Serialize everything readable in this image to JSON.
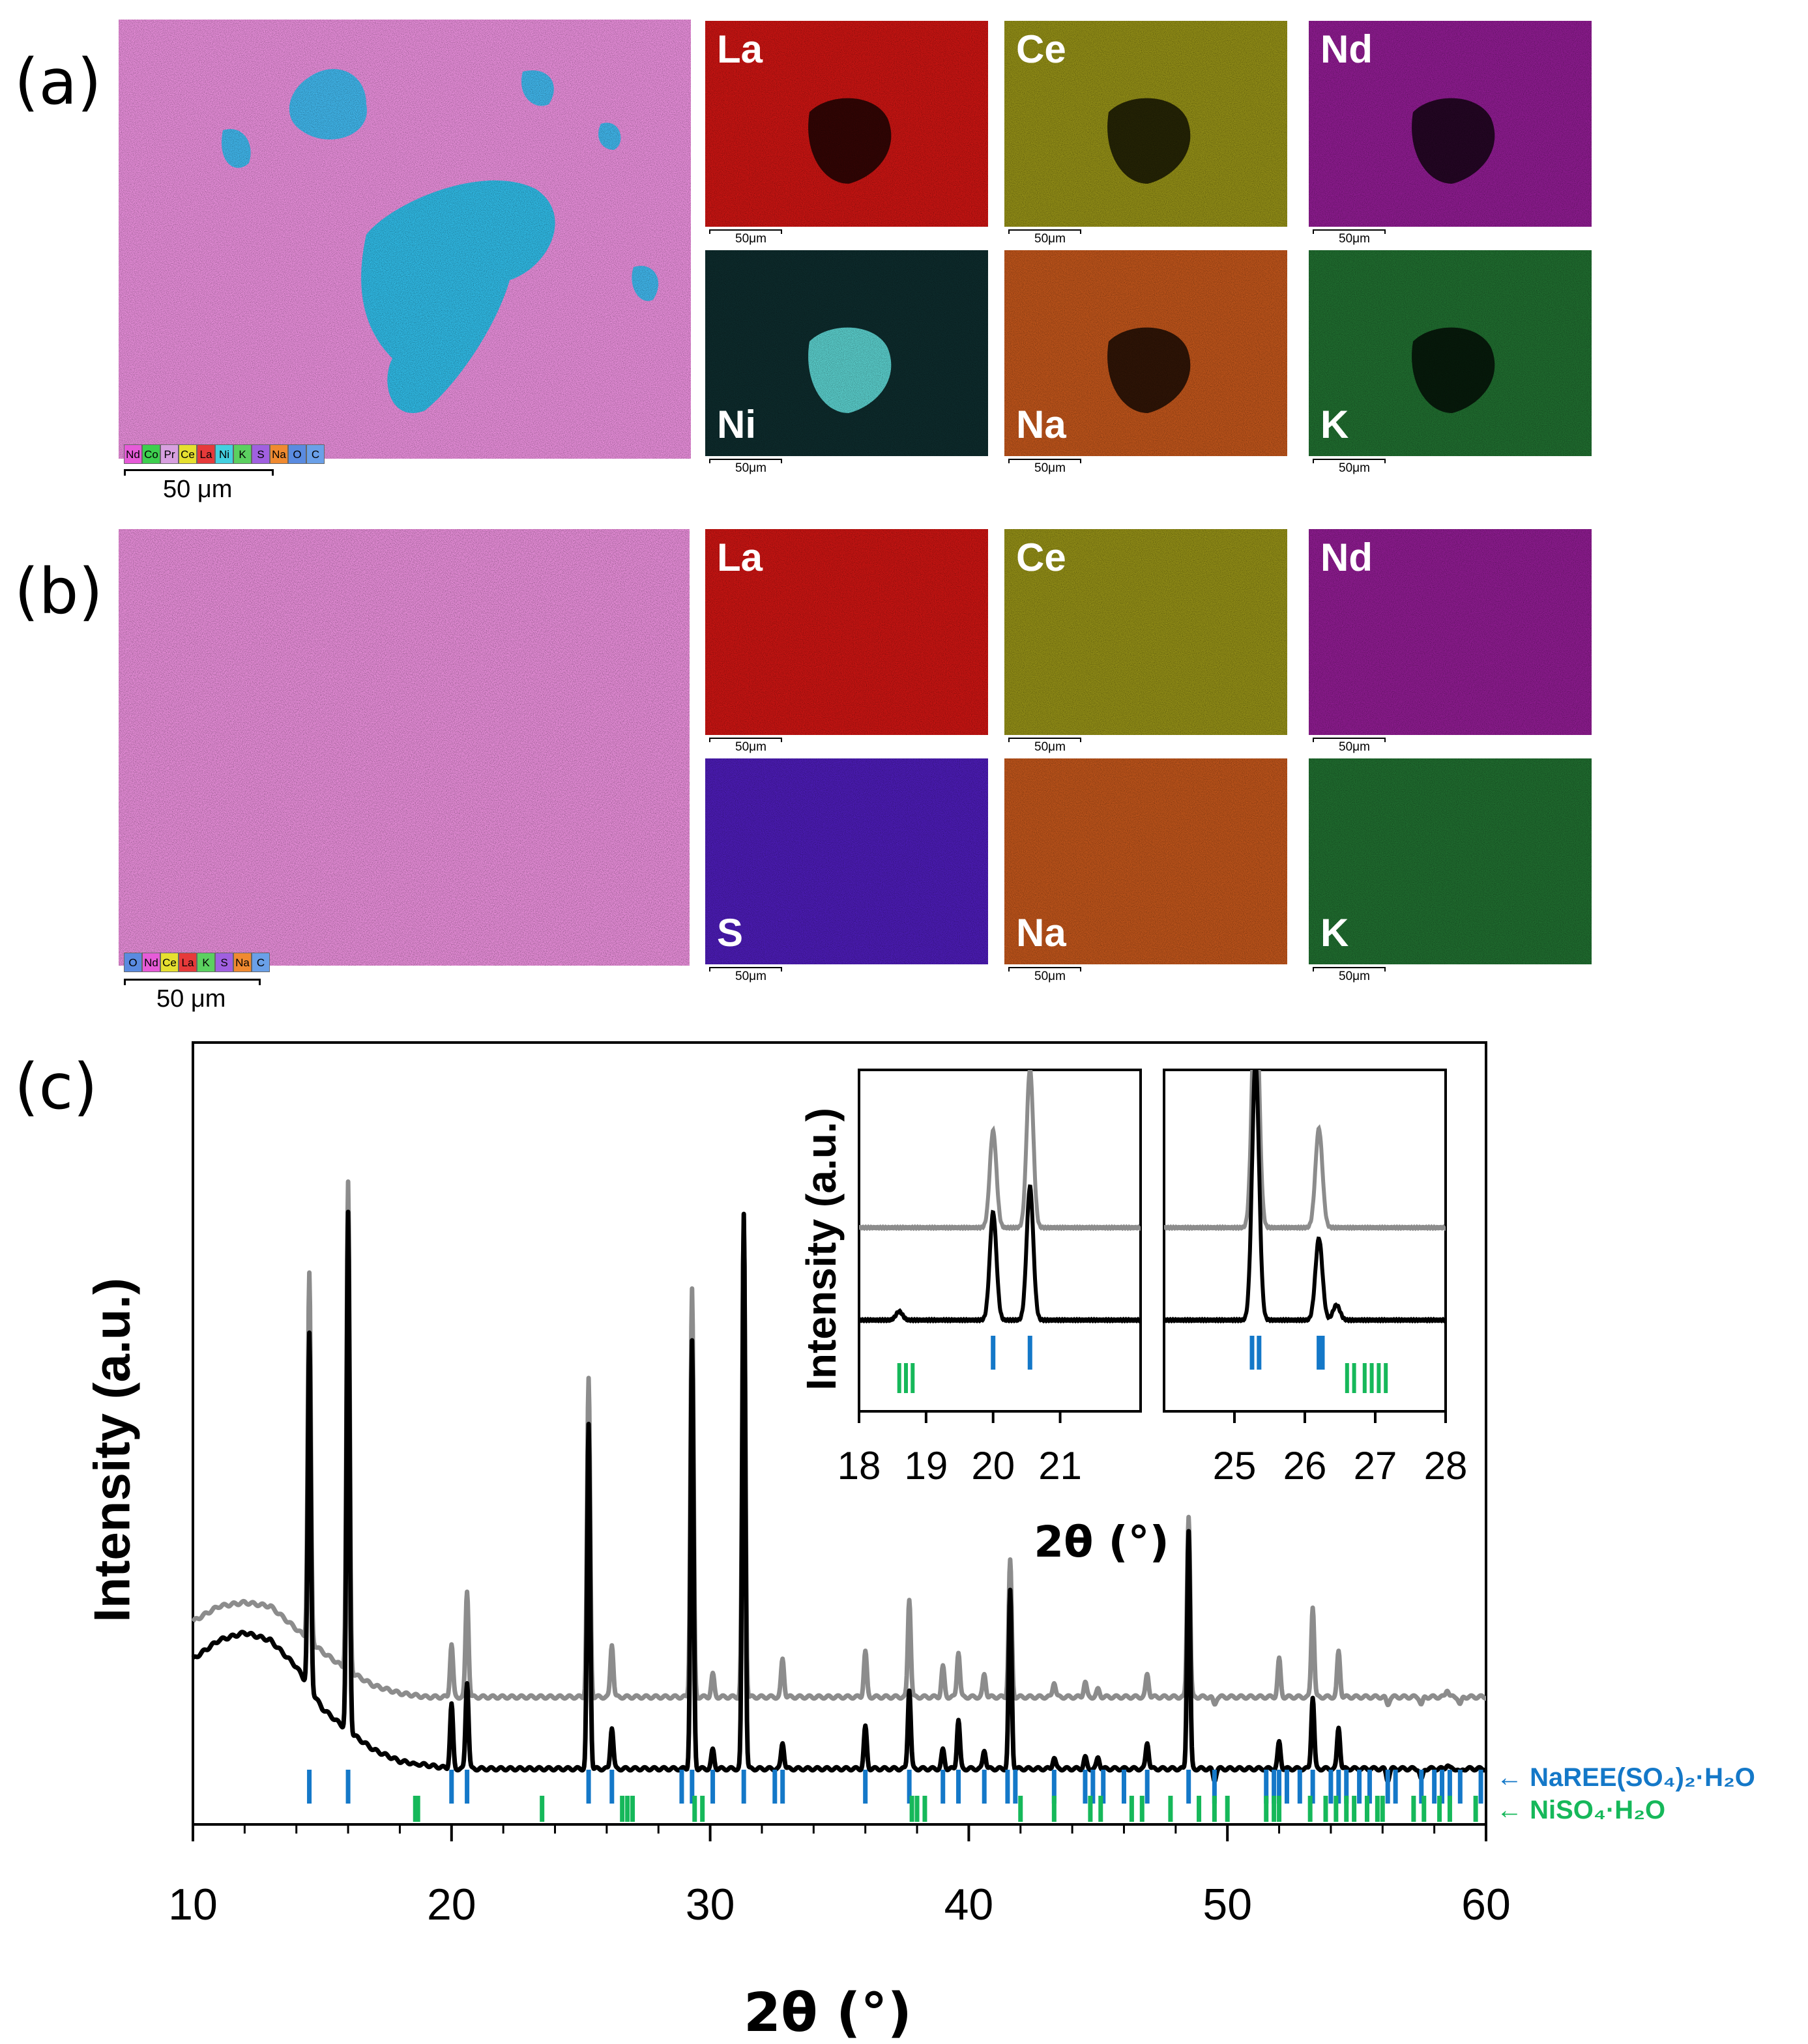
{
  "panels": {
    "a": "(a)",
    "b": "(b)",
    "c": "(c)"
  },
  "map_scale_small": "50μm",
  "map_scale_big": "50 μm",
  "colors": {
    "La": "#c41412",
    "Ce": "#8e8a16",
    "Nd": "#8a1b8c",
    "Ni": "#2a8f92",
    "Na": "#b9521a",
    "K": "#1f6a2e",
    "S": "#4a1bb0",
    "overlay_pink": "#e481d2",
    "overlay_cyan": "#38b8e4",
    "blue_ticks": "#1478c8",
    "green_ticks": "#16b85a",
    "gray_pattern": "#8c8c8c",
    "black_pattern": "#000000"
  },
  "panel_a": {
    "overlay_legend": [
      "Nd",
      "Co",
      "Pr",
      "Ce",
      "La",
      "Ni",
      "K",
      "S",
      "Na",
      "O",
      "C"
    ],
    "maps": [
      {
        "element": "La",
        "color_key": "La"
      },
      {
        "element": "Ce",
        "color_key": "Ce"
      },
      {
        "element": "Nd",
        "color_key": "Nd"
      },
      {
        "element": "Ni",
        "color_key": "Ni"
      },
      {
        "element": "Na",
        "color_key": "Na"
      },
      {
        "element": "K",
        "color_key": "K"
      }
    ]
  },
  "panel_b": {
    "overlay_legend": [
      "O",
      "Nd",
      "Ce",
      "La",
      "K",
      "S",
      "Na",
      "C"
    ],
    "maps": [
      {
        "element": "La",
        "color_key": "La"
      },
      {
        "element": "Ce",
        "color_key": "Ce"
      },
      {
        "element": "Nd",
        "color_key": "Nd"
      },
      {
        "element": "S",
        "color_key": "S"
      },
      {
        "element": "Na",
        "color_key": "Na"
      },
      {
        "element": "K",
        "color_key": "K"
      }
    ]
  },
  "chart_data": {
    "type": "line",
    "xlabel": "2θ (°)",
    "ylabel": "Intensity (a.u.)",
    "xlim": [
      10,
      60
    ],
    "xticks": [
      10,
      20,
      30,
      40,
      50,
      60
    ],
    "grid": false,
    "series": [
      {
        "color": "#8c8c8c",
        "baseline_points": [
          [
            10,
            0.26
          ],
          [
            11,
            0.28
          ],
          [
            12,
            0.285
          ],
          [
            13,
            0.28
          ],
          [
            14,
            0.25
          ],
          [
            15,
            0.22
          ],
          [
            16,
            0.195
          ],
          [
            17,
            0.175
          ],
          [
            18,
            0.165
          ],
          [
            19,
            0.16
          ],
          [
            20,
            0.16
          ],
          [
            30,
            0.16
          ],
          [
            40,
            0.16
          ],
          [
            50,
            0.16
          ],
          [
            60,
            0.16
          ]
        ],
        "peaks": [
          [
            14.5,
            0.72
          ],
          [
            16.0,
            0.84
          ],
          [
            20.0,
            0.23
          ],
          [
            20.6,
            0.3
          ],
          [
            25.3,
            0.58
          ],
          [
            26.2,
            0.23
          ],
          [
            29.3,
            0.7
          ],
          [
            30.1,
            0.19
          ],
          [
            31.3,
            0.79
          ],
          [
            32.8,
            0.21
          ],
          [
            36.0,
            0.22
          ],
          [
            37.7,
            0.29
          ],
          [
            39.0,
            0.2
          ],
          [
            39.6,
            0.22
          ],
          [
            40.6,
            0.19
          ],
          [
            41.6,
            0.34
          ],
          [
            43.3,
            0.18
          ],
          [
            44.5,
            0.18
          ],
          [
            45.0,
            0.17
          ],
          [
            46.9,
            0.19
          ],
          [
            48.5,
            0.4
          ],
          [
            49.5,
            0.15
          ],
          [
            52.0,
            0.21
          ],
          [
            53.3,
            0.28
          ],
          [
            54.3,
            0.22
          ],
          [
            56.2,
            0.15
          ],
          [
            57.5,
            0.15
          ],
          [
            58.5,
            0.17
          ],
          [
            59.0,
            0.15
          ]
        ]
      },
      {
        "color": "#000000",
        "baseline_points": [
          [
            10,
            0.21
          ],
          [
            11,
            0.235
          ],
          [
            12,
            0.245
          ],
          [
            13,
            0.235
          ],
          [
            14,
            0.2
          ],
          [
            15,
            0.145
          ],
          [
            16,
            0.115
          ],
          [
            17,
            0.09
          ],
          [
            18,
            0.075
          ],
          [
            19,
            0.07
          ],
          [
            20,
            0.065
          ],
          [
            30,
            0.065
          ],
          [
            40,
            0.065
          ],
          [
            50,
            0.065
          ],
          [
            60,
            0.065
          ]
        ],
        "peaks": [
          [
            14.5,
            0.64
          ],
          [
            16.0,
            0.8
          ],
          [
            18.6,
            0.07
          ],
          [
            20.0,
            0.15
          ],
          [
            20.6,
            0.18
          ],
          [
            25.3,
            0.52
          ],
          [
            26.2,
            0.12
          ],
          [
            29.3,
            0.63
          ],
          [
            30.1,
            0.09
          ],
          [
            31.3,
            0.8
          ],
          [
            32.8,
            0.1
          ],
          [
            36.0,
            0.12
          ],
          [
            37.7,
            0.17
          ],
          [
            39.0,
            0.09
          ],
          [
            39.6,
            0.13
          ],
          [
            40.6,
            0.09
          ],
          [
            41.6,
            0.3
          ],
          [
            43.3,
            0.08
          ],
          [
            44.5,
            0.08
          ],
          [
            45.0,
            0.08
          ],
          [
            46.9,
            0.1
          ],
          [
            48.5,
            0.38
          ],
          [
            49.5,
            0.05
          ],
          [
            52.0,
            0.1
          ],
          [
            53.3,
            0.16
          ],
          [
            54.3,
            0.12
          ],
          [
            56.2,
            0.05
          ],
          [
            57.5,
            0.05
          ],
          [
            58.5,
            0.07
          ],
          [
            59.0,
            0.06
          ]
        ]
      }
    ],
    "reference_ticks": [
      {
        "name": "NaREE(SO₄)₂·H₂O",
        "color": "#1478c8",
        "positions": [
          14.5,
          16.0,
          20.0,
          20.6,
          25.3,
          26.2,
          28.9,
          29.3,
          30.1,
          31.3,
          32.5,
          32.8,
          36.0,
          37.7,
          39.0,
          39.6,
          40.6,
          41.5,
          41.8,
          43.3,
          44.5,
          44.8,
          45.2,
          46.0,
          46.9,
          48.5,
          49.5,
          51.5,
          51.8,
          52.0,
          52.3,
          52.8,
          53.3,
          54.0,
          54.3,
          54.6,
          55.1,
          55.5,
          56.2,
          56.5,
          57.5,
          58.0,
          58.3,
          58.6,
          59.0,
          59.8
        ]
      },
      {
        "name": "NiSO₄·H₂O",
        "color": "#16b85a",
        "positions": [
          18.6,
          18.7,
          23.5,
          26.6,
          26.8,
          27.0,
          29.4,
          29.7,
          37.8,
          38.0,
          38.3,
          42.0,
          43.3,
          44.7,
          45.1,
          46.3,
          46.7,
          47.8,
          48.9,
          49.5,
          50.0,
          51.5,
          51.8,
          52.0,
          53.2,
          53.8,
          54.2,
          54.6,
          54.9,
          55.4,
          55.8,
          56.0,
          57.2,
          57.6,
          58.2,
          58.6,
          59.6
        ]
      }
    ],
    "inset_left": {
      "xlim": [
        18,
        22.2
      ],
      "xticks": [
        18,
        19,
        20,
        21
      ],
      "gray_peaks": [
        [
          20.0,
          0.45
        ],
        [
          20.55,
          0.74
        ]
      ],
      "black_peaks": [
        [
          18.6,
          0.04
        ],
        [
          20.0,
          0.5
        ],
        [
          20.55,
          0.62
        ]
      ],
      "blue_ticks": [
        20.0,
        20.55
      ],
      "green_ticks": [
        18.6,
        18.7,
        18.8
      ]
    },
    "inset_right": {
      "xlim": [
        24,
        28
      ],
      "xticks": [
        25,
        26,
        27,
        28
      ],
      "gray_peaks": [
        [
          25.3,
          1.2
        ],
        [
          26.2,
          0.46
        ]
      ],
      "black_peaks": [
        [
          25.3,
          1.2
        ],
        [
          26.2,
          0.38
        ],
        [
          26.45,
          0.07
        ]
      ],
      "blue_ticks": [
        25.25,
        25.35,
        26.2,
        26.25
      ],
      "green_ticks": [
        26.6,
        26.7,
        26.85,
        26.95,
        27.05,
        27.15
      ]
    },
    "inset_ylabel": "Intensity (a.u.)",
    "inset_xlabel": "2θ (°)"
  }
}
